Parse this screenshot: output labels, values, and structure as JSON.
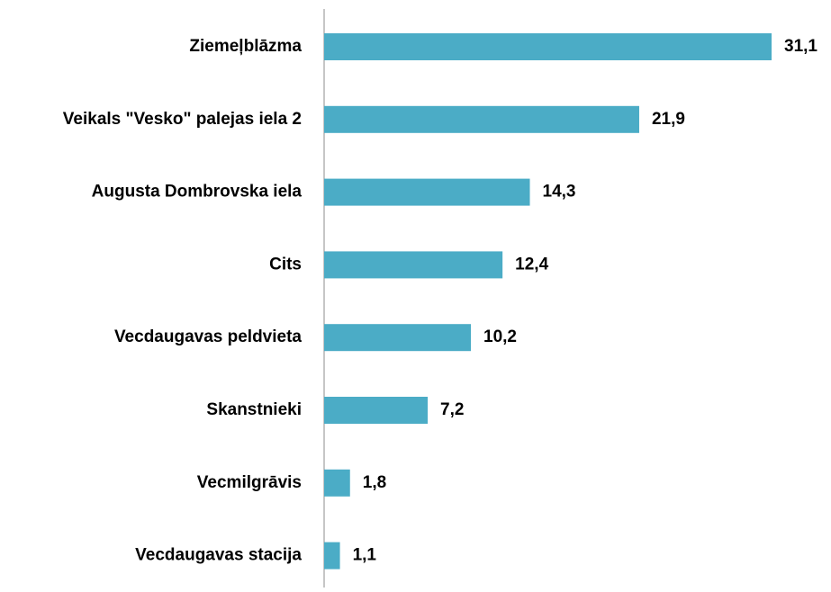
{
  "chart_data": {
    "type": "bar",
    "orientation": "horizontal",
    "categories": [
      "Ziemeļblāzma",
      "Veikals \"Vesko\" palejas iela 2",
      "Augusta Dombrovska iela",
      "Cits",
      "Vecdaugavas peldvieta",
      "Skanstnieki",
      "Vecmilgrāvis",
      "Vecdaugavas stacija"
    ],
    "values": [
      31.1,
      21.9,
      14.3,
      12.4,
      10.2,
      7.2,
      1.8,
      1.1
    ],
    "value_labels": [
      "31,1",
      "21,9",
      "14,3",
      "12,4",
      "10,2",
      "7,2",
      "1,8",
      "1,1"
    ],
    "color": "#4bacc6"
  }
}
